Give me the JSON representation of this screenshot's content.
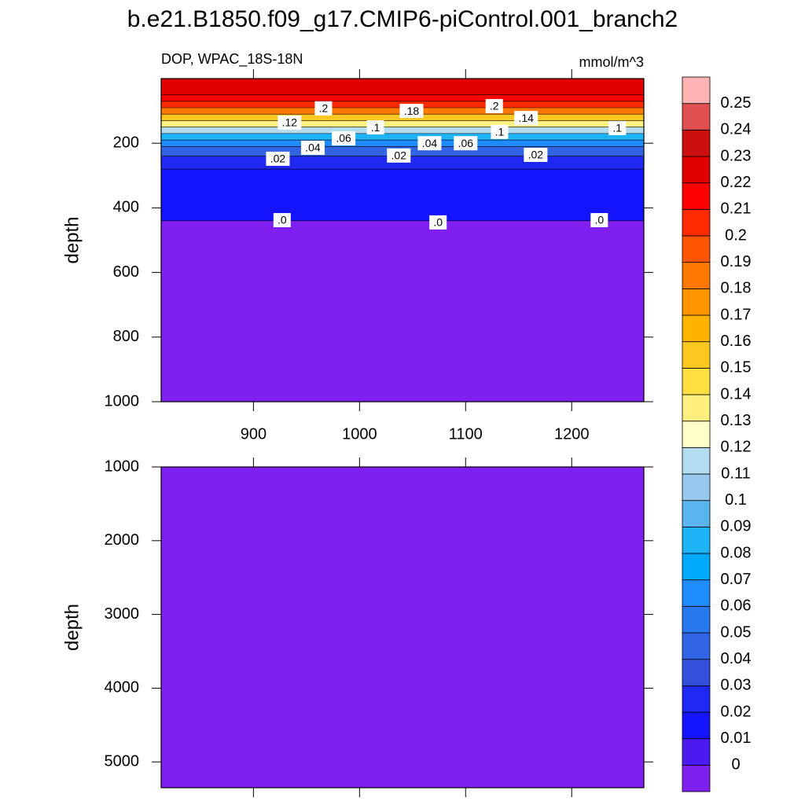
{
  "title": "b.e21.B1850.f09_g17.CMIP6-piControl.001_branch2",
  "chart_data": [
    {
      "type": "contour",
      "left_string": "DOP, WPAC_18S-18N",
      "right_string": "mmol/m^3",
      "ylabel": "depth",
      "xlim": [
        813,
        1268
      ],
      "xticks": [
        900,
        1000,
        1100,
        1200
      ],
      "show_xtick_labels": true,
      "ylim": [
        0,
        1000
      ],
      "yticks": [
        200,
        400,
        600,
        800,
        1000
      ],
      "y": [
        5,
        50,
        70,
        90,
        110,
        130,
        150,
        170,
        190,
        210,
        240,
        280,
        440
      ],
      "values": [
        0.22,
        0.21,
        0.2,
        0.18,
        0.15,
        0.13,
        0.11,
        0.08,
        0.06,
        0.04,
        0.02,
        0.01,
        -0.001
      ],
      "contour_labels": [
        {
          "value": 0.12,
          "label": ".12",
          "x": 934,
          "y": 136
        },
        {
          "value": 0.2,
          "label": ".2",
          "x": 966,
          "y": 92
        },
        {
          "value": 0.18,
          "label": ".18",
          "x": 1049,
          "y": 100
        },
        {
          "value": 0.2,
          "label": ".2",
          "x": 1127,
          "y": 85
        },
        {
          "value": 0.14,
          "label": ".14",
          "x": 1157,
          "y": 122
        },
        {
          "value": 0.1,
          "label": ".1",
          "x": 1015,
          "y": 151
        },
        {
          "value": 0.1,
          "label": ".1",
          "x": 1132,
          "y": 165
        },
        {
          "value": 0.1,
          "label": ".1",
          "x": 1243,
          "y": 153
        },
        {
          "value": 0.06,
          "label": ".06",
          "x": 985,
          "y": 185
        },
        {
          "value": 0.04,
          "label": ".04",
          "x": 956,
          "y": 214
        },
        {
          "value": 0.04,
          "label": ".04",
          "x": 1066,
          "y": 200
        },
        {
          "value": 0.06,
          "label": ".06",
          "x": 1100,
          "y": 200
        },
        {
          "value": 0.02,
          "label": ".02",
          "x": 923,
          "y": 248
        },
        {
          "value": 0.02,
          "label": ".02",
          "x": 1037,
          "y": 238
        },
        {
          "value": 0.02,
          "label": ".02",
          "x": 1166,
          "y": 236
        },
        {
          "value": 0,
          "label": ".0",
          "x": 927,
          "y": 438
        },
        {
          "value": 0,
          "label": ".0",
          "x": 1074,
          "y": 445
        },
        {
          "value": 0,
          "label": ".0",
          "x": 1226,
          "y": 438
        }
      ]
    },
    {
      "type": "contour",
      "ylabel": "depth",
      "xlim": [
        813,
        1268
      ],
      "xticks": [
        900,
        1000,
        1100,
        1200
      ],
      "show_xtick_labels": false,
      "ylim": [
        1000,
        5350
      ],
      "yticks": [
        1000,
        2000,
        3000,
        4000,
        5000
      ],
      "y": [
        1000
      ],
      "values": [
        -0.001
      ],
      "contour_labels": []
    }
  ],
  "colorbar": {
    "levels": [
      0,
      0.01,
      0.02,
      0.03,
      0.04,
      0.05,
      0.06,
      0.07,
      0.08,
      0.09,
      0.1,
      0.11,
      0.12,
      0.13,
      0.14,
      0.15,
      0.16,
      0.17,
      0.18,
      0.19,
      0.2,
      0.21,
      0.22,
      0.23,
      0.24,
      0.25
    ],
    "colors": [
      "#8020f0",
      "#4a1af0",
      "#1414ff",
      "#1e28f0",
      "#3250dc",
      "#3264e6",
      "#2878f0",
      "#1e8cff",
      "#00aaff",
      "#1eb4f8",
      "#5ab4f0",
      "#96c8f0",
      "#b4dcf0",
      "#ffffc8",
      "#fff080",
      "#ffe040",
      "#ffc820",
      "#ffb400",
      "#ff9600",
      "#ff7800",
      "#ff5500",
      "#ff2a00",
      "#ff0000",
      "#e00000",
      "#cc1010",
      "#e05050",
      "#ffb4b4"
    ]
  }
}
